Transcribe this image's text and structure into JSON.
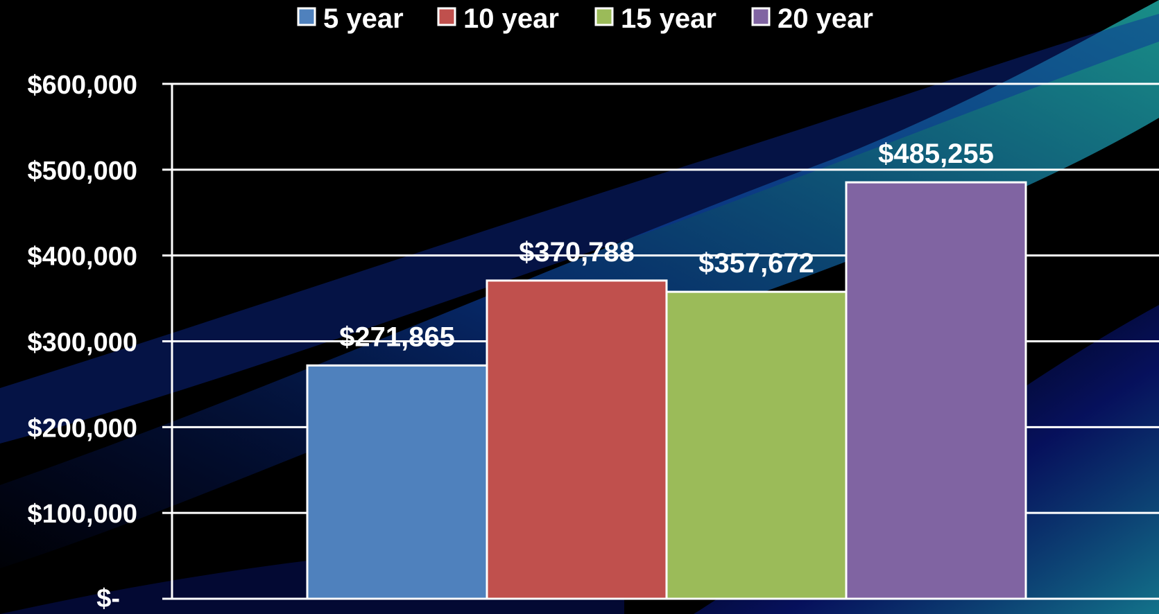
{
  "chart_data": {
    "type": "bar",
    "categories": [
      ""
    ],
    "series": [
      {
        "name": "5 year",
        "values": [
          271865
        ],
        "color": "#4F81BD",
        "label": "$271,865"
      },
      {
        "name": "10 year",
        "values": [
          370788
        ],
        "color": "#C0504D",
        "label": "$370,788"
      },
      {
        "name": "15 year",
        "values": [
          357672
        ],
        "color": "#9BBB59",
        "label": "$357,672"
      },
      {
        "name": "20 year",
        "values": [
          485255
        ],
        "color": "#8064A2",
        "label": "$485,255"
      }
    ],
    "ylim": [
      0,
      600000
    ],
    "yticks": [
      {
        "value": 600000,
        "label": "$600,000"
      },
      {
        "value": 500000,
        "label": "$500,000"
      },
      {
        "value": 400000,
        "label": "$400,000"
      },
      {
        "value": 300000,
        "label": "$300,000"
      },
      {
        "value": 200000,
        "label": "$200,000"
      },
      {
        "value": 100000,
        "label": "$100,000"
      },
      {
        "value": 0,
        "label": "$-"
      }
    ],
    "title": "",
    "xlabel": "",
    "ylabel": "",
    "grid": true,
    "legend_position": "top",
    "gridline_color": "#ffffff",
    "background_colors": [
      "#000000",
      "#061a8a",
      "#1aa5a5"
    ]
  }
}
